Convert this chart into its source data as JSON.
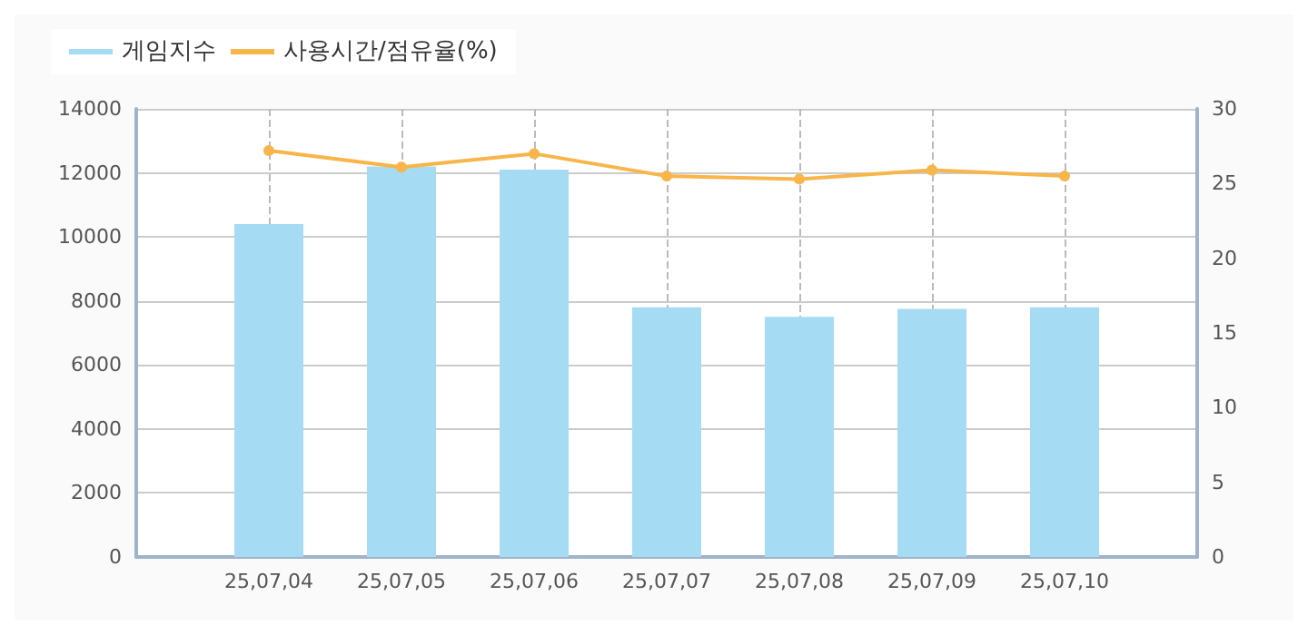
{
  "chart_data": {
    "type": "bar",
    "categories": [
      null,
      "25,07,04",
      "25,07,05",
      "25,07,06",
      "25,07,07",
      "25,07,08",
      "25,07,09",
      "25,07,10",
      null
    ],
    "series": [
      {
        "name": "게임지수",
        "color": "#a6dbf4",
        "values": [
          null,
          10400,
          12200,
          12100,
          7800,
          7500,
          7750,
          7800,
          null
        ]
      },
      {
        "name": "사용시간/점유율(%)",
        "type": "line",
        "axis": "y2",
        "color": "#f7b54a",
        "values": [
          null,
          27.2,
          26.1,
          27.0,
          25.5,
          25.3,
          25.9,
          25.5,
          null
        ]
      }
    ],
    "ylim": [
      0,
      14000
    ],
    "yticks": [
      0,
      2000,
      4000,
      6000,
      8000,
      10000,
      12000,
      14000
    ],
    "y2lim": [
      0,
      30
    ],
    "y2ticks": [
      0,
      5,
      10,
      15,
      20,
      25,
      30
    ],
    "grid": true,
    "legend": "top left",
    "marker": "circle",
    "line_style": "solid"
  }
}
